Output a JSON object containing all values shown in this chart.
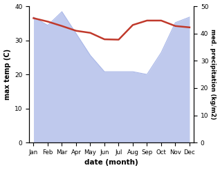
{
  "months": [
    "Jan",
    "Feb",
    "Mar",
    "Apr",
    "May",
    "Jun",
    "Jul",
    "Aug",
    "Sep",
    "Oct",
    "Nov",
    "Dec"
  ],
  "precipitation": [
    46,
    43,
    48,
    40,
    32,
    26,
    26,
    26,
    25,
    33,
    44,
    46
  ],
  "max_temp": [
    36.5,
    35.5,
    34.2,
    32.8,
    32.2,
    30.3,
    30.2,
    34.5,
    35.8,
    35.8,
    34.2,
    33.8
  ],
  "precip_color": "#aab8e8",
  "temp_color": "#c0392b",
  "ylabel_left": "max temp (C)",
  "ylabel_right": "med. precipitation (kg/m2)",
  "xlabel": "date (month)",
  "ylim_left": [
    0,
    40
  ],
  "ylim_right": [
    0,
    50
  ],
  "yticks_left": [
    0,
    10,
    20,
    30,
    40
  ],
  "yticks_right": [
    0,
    10,
    20,
    30,
    40,
    50
  ],
  "bg_color": "#ffffff"
}
